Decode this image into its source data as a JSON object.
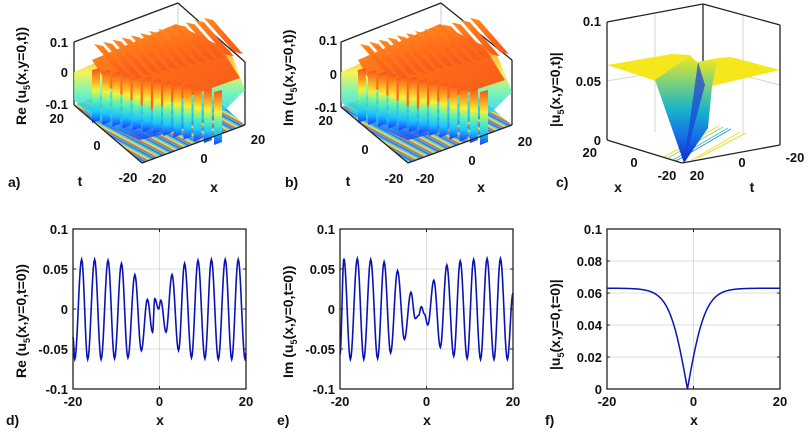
{
  "chart_data": [
    {
      "id": "a",
      "panel_label": "a)",
      "type": "surface3d",
      "zlabel": "Re (u5(x,y=0,t))",
      "zlabel_main": "Re (u",
      "zlabel_sub": "5",
      "zlabel_rest": "(x,y=0,t))",
      "xlabel": "x",
      "ylabel": "t",
      "zticks": [
        "0.1",
        "0",
        "-0.1"
      ],
      "xticks": [
        "-20",
        "0",
        "20"
      ],
      "tticks": [
        "20",
        "0",
        "-20"
      ],
      "xlim": [
        -20,
        20
      ],
      "tlim": [
        -20,
        20
      ],
      "zlim": [
        -0.1,
        0.1
      ],
      "colormap": "jet",
      "description": "periodic oscillating surface with amplitude ~0.063"
    },
    {
      "id": "b",
      "panel_label": "b)",
      "type": "surface3d",
      "zlabel": "Im (u5(x,y=0,t))",
      "zlabel_main": "Im (u",
      "zlabel_sub": "5",
      "zlabel_rest": "(x,y=0,t))",
      "xlabel": "x",
      "ylabel": "t",
      "zticks": [
        "0.1",
        "0",
        "-0.1"
      ],
      "xticks": [
        "-20",
        "0",
        "20"
      ],
      "tticks": [
        "20",
        "0",
        "-20"
      ],
      "xlim": [
        -20,
        20
      ],
      "tlim": [
        -20,
        20
      ],
      "zlim": [
        -0.1,
        0.1
      ],
      "colormap": "jet",
      "description": "periodic oscillating surface with amplitude ~0.063"
    },
    {
      "id": "c",
      "panel_label": "c)",
      "type": "surface3d",
      "zlabel": "|u5(x,y=0,t)|",
      "zlabel_main": "|u",
      "zlabel_sub": "5",
      "zlabel_rest": "(x,y=0,t)|",
      "xlabel": "x",
      "ylabel": "t",
      "zticks": [
        "0.1",
        "0.05",
        "0"
      ],
      "xticks": [
        "20",
        "0",
        "-20"
      ],
      "tticks": [
        "20",
        "0",
        "-20"
      ],
      "xlim": [
        -20,
        20
      ],
      "tlim": [
        -20,
        20
      ],
      "zlim": [
        0,
        0.1
      ],
      "colormap": "parula",
      "plateau": 0.063,
      "description": "dark soliton trough dropping to 0 along a line"
    },
    {
      "id": "d",
      "panel_label": "d)",
      "type": "line",
      "ylabel_main": "Re (u",
      "ylabel_sub": "5",
      "ylabel_rest": "(x,y=0,t=0))",
      "xlabel": "x",
      "xlim": [
        -20,
        20
      ],
      "ylim": [
        -0.1,
        0.1
      ],
      "xticks": [
        "-20",
        "0",
        "20"
      ],
      "yticks": [
        "0.1",
        "0.05",
        "0",
        "-0.05",
        "-0.1"
      ],
      "grid": true,
      "color": "#0a14b4",
      "extrema": [
        [
          -20,
          -0.035
        ],
        [
          -19.6,
          -0.063
        ],
        [
          -18.0,
          0.062
        ],
        [
          -16.6,
          -0.063
        ],
        [
          -15.0,
          0.062
        ],
        [
          -13.5,
          -0.063
        ],
        [
          -11.9,
          0.061
        ],
        [
          -10.4,
          -0.062
        ],
        [
          -8.8,
          0.057
        ],
        [
          -7.3,
          -0.061
        ],
        [
          -5.7,
          0.043
        ],
        [
          -4.2,
          -0.052
        ],
        [
          -2.8,
          0.012
        ],
        [
          -1.6,
          -0.029
        ],
        [
          -1.1,
          0.013
        ],
        [
          -0.2,
          0.0
        ],
        [
          0.3,
          0.011
        ],
        [
          1.5,
          -0.029
        ],
        [
          2.9,
          0.043
        ],
        [
          4.4,
          -0.052
        ],
        [
          5.8,
          0.057
        ],
        [
          7.4,
          -0.061
        ],
        [
          8.9,
          0.061
        ],
        [
          10.5,
          -0.062
        ],
        [
          12.0,
          0.062
        ],
        [
          13.6,
          -0.063
        ],
        [
          15.2,
          0.062
        ],
        [
          16.7,
          -0.063
        ],
        [
          18.2,
          0.062
        ],
        [
          19.8,
          -0.063
        ],
        [
          20,
          -0.055
        ]
      ]
    },
    {
      "id": "e",
      "panel_label": "e)",
      "type": "line",
      "ylabel_main": "Im (u",
      "ylabel_sub": "5",
      "ylabel_rest": "(x,y=0,t=0))",
      "xlabel": "x",
      "xlim": [
        -20,
        20
      ],
      "ylim": [
        -0.1,
        0.1
      ],
      "xticks": [
        "-20",
        "0",
        "20"
      ],
      "yticks": [
        "0.1",
        "0.05",
        "0",
        "-0.05",
        "-0.1"
      ],
      "grid": true,
      "color": "#0a14b4",
      "extrema": [
        [
          -20,
          -0.057
        ],
        [
          -19.1,
          0.063
        ],
        [
          -17.6,
          -0.063
        ],
        [
          -16.0,
          0.063
        ],
        [
          -14.5,
          -0.063
        ],
        [
          -12.9,
          0.062
        ],
        [
          -11.3,
          -0.062
        ],
        [
          -9.8,
          0.059
        ],
        [
          -8.3,
          -0.055
        ],
        [
          -6.7,
          0.048
        ],
        [
          -5.1,
          -0.038
        ],
        [
          -3.6,
          0.021
        ],
        [
          -2.6,
          -0.012
        ],
        [
          -1.8,
          -0.008
        ],
        [
          -1.2,
          0.003
        ],
        [
          -0.5,
          -0.006
        ],
        [
          0.3,
          -0.02
        ],
        [
          1.7,
          0.036
        ],
        [
          3.2,
          -0.048
        ],
        [
          4.7,
          0.055
        ],
        [
          6.3,
          -0.059
        ],
        [
          7.8,
          0.06
        ],
        [
          9.4,
          -0.062
        ],
        [
          10.9,
          0.062
        ],
        [
          12.5,
          -0.063
        ],
        [
          14.0,
          0.063
        ],
        [
          15.6,
          -0.063
        ],
        [
          17.1,
          0.063
        ],
        [
          18.7,
          -0.063
        ],
        [
          20,
          0.02
        ]
      ]
    },
    {
      "id": "f",
      "panel_label": "f)",
      "type": "line",
      "ylabel_main": "|u",
      "ylabel_sub": "5",
      "ylabel_rest": "(x,y=0,t=0)|",
      "xlabel": "x",
      "xlim": [
        -20,
        20
      ],
      "ylim": [
        0,
        0.1
      ],
      "xticks": [
        "-20",
        "0",
        "20"
      ],
      "yticks": [
        "0.1",
        "0.08",
        "0.06",
        "0.04",
        "0.02",
        "0"
      ],
      "grid": true,
      "color": "#0a14b4",
      "plateau": 0.063,
      "minimum_x": -1.4,
      "minimum_y": 0.0,
      "width_param": 4.2
    }
  ]
}
